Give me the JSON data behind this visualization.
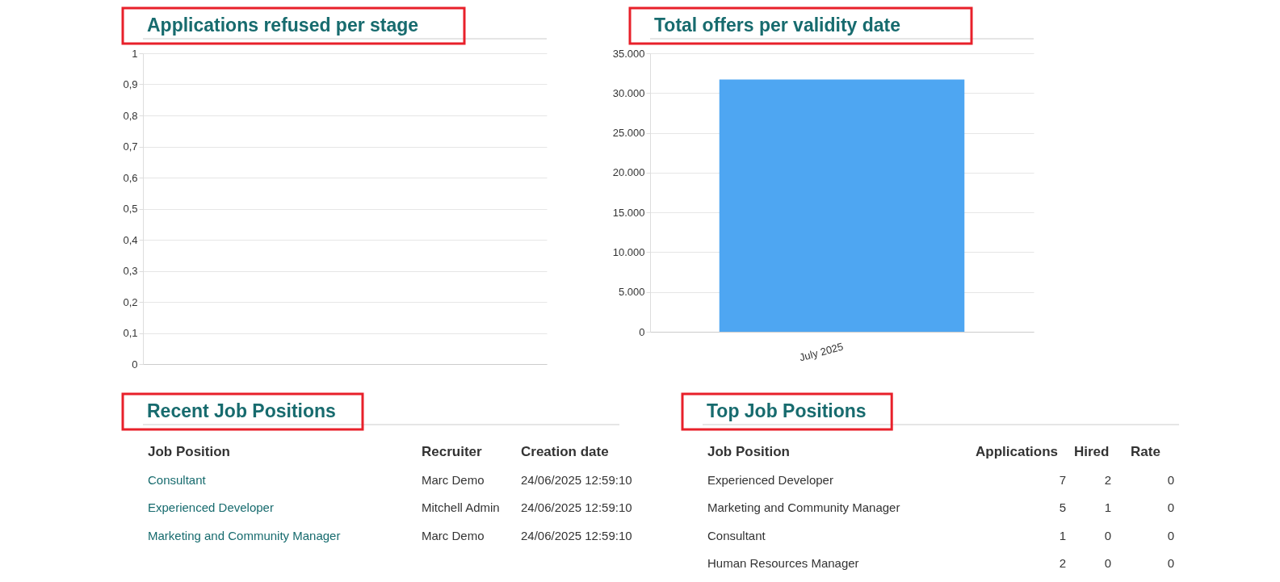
{
  "chart_data": [
    {
      "type": "bar",
      "title": "Applications refused per stage",
      "categories": [
        null
      ],
      "values": [
        null
      ],
      "color": "#4ea6f2",
      "ylim": [
        0,
        1
      ],
      "yticks": [
        0,
        {
          "value": 0.1,
          "label": "0,1"
        },
        {
          "value": 0.2,
          "label": "0,2"
        },
        {
          "value": 0.3,
          "label": "0,3"
        },
        {
          "value": 0.4,
          "label": "0,4"
        },
        {
          "value": 0.5,
          "label": "0,5"
        },
        {
          "value": 0.6,
          "label": "0,6"
        },
        {
          "value": 0.7,
          "label": "0,7"
        },
        {
          "value": 0.8,
          "label": "0,8"
        },
        {
          "value": 0.9,
          "label": "0,9"
        },
        1
      ],
      "grid": "y"
    },
    {
      "type": "bar",
      "title": "Total offers per validity date",
      "categories": [
        "July 2025"
      ],
      "values": [
        31700
      ],
      "color": "#4ea6f2",
      "ylim": [
        0,
        35000
      ],
      "yticks": [
        0,
        {
          "value": 5000,
          "label": "5.000"
        },
        {
          "value": 10000,
          "label": "10.000"
        },
        {
          "value": 15000,
          "label": "15.000"
        },
        {
          "value": 20000,
          "label": "20.000"
        },
        {
          "value": 25000,
          "label": "25.000"
        },
        {
          "value": 30000,
          "label": "30.000"
        },
        {
          "value": 35000,
          "label": "35.000"
        }
      ],
      "grid": "y"
    },
    {
      "type": "other",
      "title": "Recent Job Positions",
      "annotations": [
        "Job Position",
        "Recruiter",
        "Creation date",
        "Consultant",
        "Marc Demo",
        "24/06/2025 12:59:10",
        "Experienced Developer",
        "Mitchell Admin",
        "24/06/2025 12:59:10",
        "Marketing and Community Manager",
        "Marc Demo",
        "24/06/2025 12:59:10"
      ]
    },
    {
      "type": "other",
      "title": "Top Job Positions",
      "annotations": [
        "Job Position",
        "Applications",
        "Hired",
        "Rate",
        "Experienced Developer",
        "7",
        "2",
        "0",
        "Marketing and Community Manager",
        "5",
        "1",
        "0",
        "Consultant",
        "1",
        "0",
        "0",
        "Human Resources Manager",
        "2",
        "0",
        "0"
      ]
    }
  ]
}
